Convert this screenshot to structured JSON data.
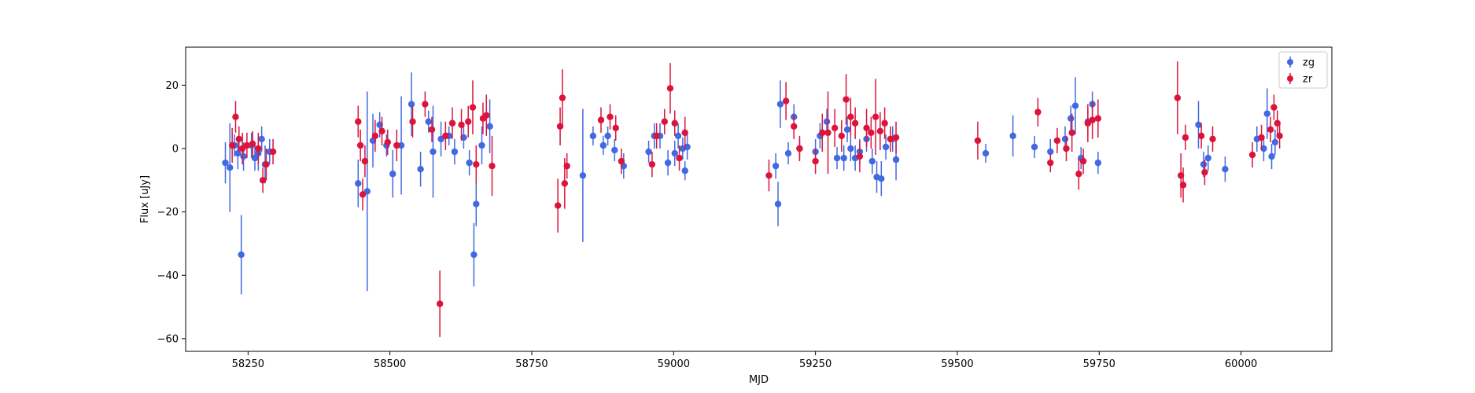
{
  "chart_data": {
    "type": "scatter",
    "title": "",
    "xlabel": "MJD",
    "ylabel": "Flux [uJy]",
    "xlim": [
      58140,
      60160
    ],
    "ylim": [
      -64,
      32
    ],
    "xticks": [
      58250,
      58500,
      58750,
      59000,
      59250,
      59500,
      59750,
      60000
    ],
    "yticks": [
      -60,
      -40,
      -20,
      0,
      20
    ],
    "grid": false,
    "legend_position": "top-right",
    "series": [
      {
        "name": "zg",
        "color": "#4169e1",
        "points": [
          [
            58210,
            -4.5,
            6.5
          ],
          [
            58218,
            -6,
            14
          ],
          [
            58226,
            1,
            3.5
          ],
          [
            58232,
            -1.5,
            5
          ],
          [
            58238,
            -33.5,
            12.5
          ],
          [
            58242,
            -2.5,
            4.5
          ],
          [
            58256,
            1,
            4
          ],
          [
            58262,
            -3,
            4
          ],
          [
            58268,
            -1.5,
            5.5
          ],
          [
            58274,
            3,
            4
          ],
          [
            58280,
            -5,
            6
          ],
          [
            58288,
            -1,
            4
          ],
          [
            58444,
            -11,
            7.5
          ],
          [
            58460,
            -13.5,
            31.5
          ],
          [
            58470,
            2.5,
            8.5
          ],
          [
            58482,
            7.5,
            4
          ],
          [
            58494,
            1,
            3.5
          ],
          [
            58505,
            -8,
            7.5
          ],
          [
            58520,
            1,
            15.5
          ],
          [
            58538,
            14,
            10
          ],
          [
            58554,
            -6.5,
            5.5
          ],
          [
            58568,
            8.5,
            3.5
          ],
          [
            58576,
            -1,
            14.5
          ],
          [
            58590,
            3,
            5.5
          ],
          [
            58604,
            4,
            3
          ],
          [
            58614,
            -1,
            4
          ],
          [
            58630,
            3.5,
            3.5
          ],
          [
            58640,
            -4.5,
            4
          ],
          [
            58648,
            -33.5,
            10
          ],
          [
            58652,
            -17.5,
            7
          ],
          [
            58662,
            1,
            6
          ],
          [
            58676,
            7,
            8.5
          ],
          [
            58840,
            -8.5,
            21
          ],
          [
            58858,
            4,
            3
          ],
          [
            58876,
            1,
            3
          ],
          [
            58884,
            4,
            3
          ],
          [
            58896,
            -0.5,
            3.5
          ],
          [
            58912,
            -5.5,
            4
          ],
          [
            58956,
            -1,
            3.5
          ],
          [
            58966,
            4,
            4
          ],
          [
            58976,
            4,
            4
          ],
          [
            58990,
            -4.5,
            4
          ],
          [
            59002,
            -1.5,
            4
          ],
          [
            59008,
            4,
            4
          ],
          [
            59016,
            0,
            3.5
          ],
          [
            59020,
            -7,
            3
          ],
          [
            59024,
            0.5,
            4
          ],
          [
            59180,
            -5.5,
            4
          ],
          [
            59184,
            -17.5,
            7
          ],
          [
            59188,
            14,
            7.5
          ],
          [
            59202,
            -1.5,
            3.5
          ],
          [
            59212,
            10,
            4
          ],
          [
            59222,
            0,
            3
          ],
          [
            59250,
            -1,
            4
          ],
          [
            59258,
            4,
            4
          ],
          [
            59270,
            8.5,
            4
          ],
          [
            59288,
            -3,
            3.5
          ],
          [
            59300,
            -3,
            4
          ],
          [
            59306,
            6,
            4
          ],
          [
            59312,
            0,
            4
          ],
          [
            59320,
            -3,
            4
          ],
          [
            59328,
            -1,
            4
          ],
          [
            59340,
            3,
            4
          ],
          [
            59350,
            -4,
            4
          ],
          [
            59358,
            -9,
            5
          ],
          [
            59366,
            -9.5,
            5.5
          ],
          [
            59374,
            0.5,
            4
          ],
          [
            59386,
            3,
            4
          ],
          [
            59392,
            -3.5,
            6.5
          ],
          [
            59550,
            -1.5,
            3
          ],
          [
            59598,
            4,
            6.5
          ],
          [
            59636,
            0.5,
            3.5
          ],
          [
            59664,
            -1,
            4
          ],
          [
            59690,
            3,
            4
          ],
          [
            59700,
            9.5,
            4
          ],
          [
            59708,
            13.5,
            9
          ],
          [
            59718,
            -3,
            3.5
          ],
          [
            59730,
            8.5,
            4
          ],
          [
            59738,
            14,
            4
          ],
          [
            59748,
            -4.5,
            3.5
          ],
          [
            59925,
            7.5,
            7.5
          ],
          [
            59934,
            -5,
            4
          ],
          [
            59942,
            -3,
            4
          ],
          [
            59972,
            -6.5,
            4
          ],
          [
            60028,
            3,
            4
          ],
          [
            60040,
            0,
            4
          ],
          [
            60046,
            11,
            8
          ],
          [
            60054,
            -2.5,
            4
          ],
          [
            60060,
            2,
            4
          ]
        ]
      },
      {
        "name": "zr",
        "color": "#dc143c",
        "points": [
          [
            58222,
            1,
            5.5
          ],
          [
            58228,
            10,
            5
          ],
          [
            58234,
            3,
            4
          ],
          [
            58240,
            0,
            5
          ],
          [
            58248,
            1,
            4
          ],
          [
            58258,
            1.5,
            4
          ],
          [
            58268,
            0,
            5
          ],
          [
            58276,
            -10,
            4
          ],
          [
            58282,
            -5,
            5
          ],
          [
            58294,
            -1,
            4
          ],
          [
            58444,
            8.5,
            5
          ],
          [
            58448,
            1,
            5
          ],
          [
            58452,
            -14.5,
            5
          ],
          [
            58456,
            -4,
            5
          ],
          [
            58474,
            4,
            5
          ],
          [
            58486,
            5.5,
            4.5
          ],
          [
            58496,
            2,
            4
          ],
          [
            58512,
            1,
            5
          ],
          [
            58540,
            8.5,
            5
          ],
          [
            58562,
            14,
            4
          ],
          [
            58574,
            6,
            4
          ],
          [
            58588,
            -49,
            10.5
          ],
          [
            58598,
            4,
            4.5
          ],
          [
            58610,
            8,
            5
          ],
          [
            58626,
            7.5,
            5
          ],
          [
            58638,
            8.5,
            5
          ],
          [
            58646,
            13,
            8.5
          ],
          [
            58652,
            -5,
            6
          ],
          [
            58664,
            9.5,
            5
          ],
          [
            58670,
            10.5,
            6.5
          ],
          [
            58680,
            -5.5,
            9.5
          ],
          [
            58796,
            -18,
            8.5
          ],
          [
            58800,
            7,
            6
          ],
          [
            58804,
            16,
            9
          ],
          [
            58808,
            -11,
            8
          ],
          [
            58812,
            -5.5,
            4
          ],
          [
            58872,
            9,
            4
          ],
          [
            58888,
            10,
            4
          ],
          [
            58898,
            6.5,
            4
          ],
          [
            58908,
            -4,
            4
          ],
          [
            58962,
            -5,
            4
          ],
          [
            58970,
            4,
            4
          ],
          [
            58984,
            8.5,
            4
          ],
          [
            58994,
            19,
            8
          ],
          [
            59002,
            8,
            4
          ],
          [
            59010,
            -3,
            4
          ],
          [
            59020,
            5,
            5
          ],
          [
            59168,
            -8.5,
            5
          ],
          [
            59198,
            15,
            6
          ],
          [
            59212,
            7,
            4
          ],
          [
            59222,
            0,
            4
          ],
          [
            59250,
            -4,
            4
          ],
          [
            59262,
            5,
            6
          ],
          [
            59272,
            5,
            13
          ],
          [
            59284,
            6.5,
            6
          ],
          [
            59296,
            4,
            5
          ],
          [
            59304,
            15.5,
            8
          ],
          [
            59312,
            10,
            6
          ],
          [
            59320,
            8,
            5
          ],
          [
            59328,
            -2.5,
            5
          ],
          [
            59340,
            6.5,
            6
          ],
          [
            59348,
            5,
            5
          ],
          [
            59356,
            10,
            12
          ],
          [
            59364,
            5.5,
            6
          ],
          [
            59372,
            8,
            5
          ],
          [
            59382,
            3,
            4
          ],
          [
            59392,
            3.5,
            5
          ],
          [
            59536,
            2.5,
            6
          ],
          [
            59642,
            11.5,
            4.5
          ],
          [
            59664,
            -4.5,
            3
          ],
          [
            59676,
            2.5,
            4
          ],
          [
            59692,
            0,
            4
          ],
          [
            59702,
            5,
            6
          ],
          [
            59714,
            -8,
            5
          ],
          [
            59722,
            -4,
            4
          ],
          [
            59730,
            8,
            6
          ],
          [
            59738,
            9,
            6
          ],
          [
            59748,
            9.5,
            6
          ],
          [
            59888,
            16,
            11.5
          ],
          [
            59894,
            -8.5,
            7
          ],
          [
            59898,
            -11.5,
            5.5
          ],
          [
            59902,
            3.5,
            4
          ],
          [
            59930,
            4,
            4
          ],
          [
            59936,
            -7.5,
            4
          ],
          [
            59950,
            3,
            4
          ],
          [
            60020,
            -2,
            4
          ],
          [
            60036,
            3.5,
            4
          ],
          [
            60052,
            6,
            4
          ],
          [
            60058,
            13,
            4
          ],
          [
            60064,
            8,
            4
          ],
          [
            60068,
            4,
            4
          ]
        ]
      }
    ]
  }
}
